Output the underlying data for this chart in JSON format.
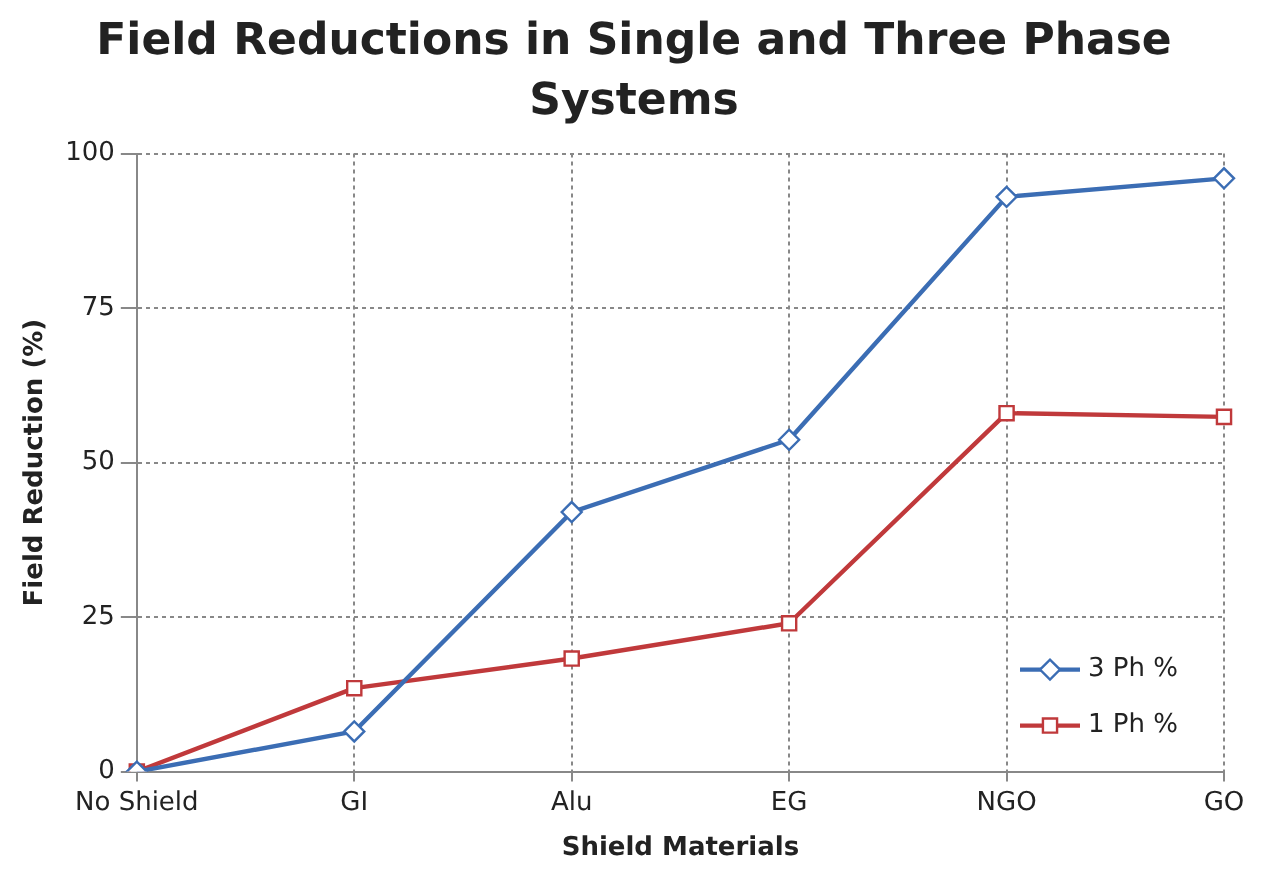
{
  "chart_data": {
    "type": "line",
    "title": "Field Reductions in Single and Three Phase Systems",
    "xlabel": "Shield Materials",
    "ylabel": "Field Reduction (%)",
    "categories": [
      "No Shield",
      "GI",
      "Alu",
      "EG",
      "NGO",
      "GO"
    ],
    "series": [
      {
        "name": "3 Ph %",
        "color": "#3b6db4",
        "marker": "diamond",
        "values": [
          0,
          6.5,
          42,
          53.7,
          93,
          96
        ]
      },
      {
        "name": "1 Ph %",
        "color": "#c0393b",
        "marker": "square",
        "values": [
          0,
          13.5,
          18.3,
          24,
          58,
          57.4
        ]
      }
    ],
    "ylim": [
      0,
      100
    ],
    "yticks": [
      0,
      25,
      50,
      75,
      100
    ],
    "grid": true,
    "legend": "bottom right",
    "line_style": "solid"
  }
}
